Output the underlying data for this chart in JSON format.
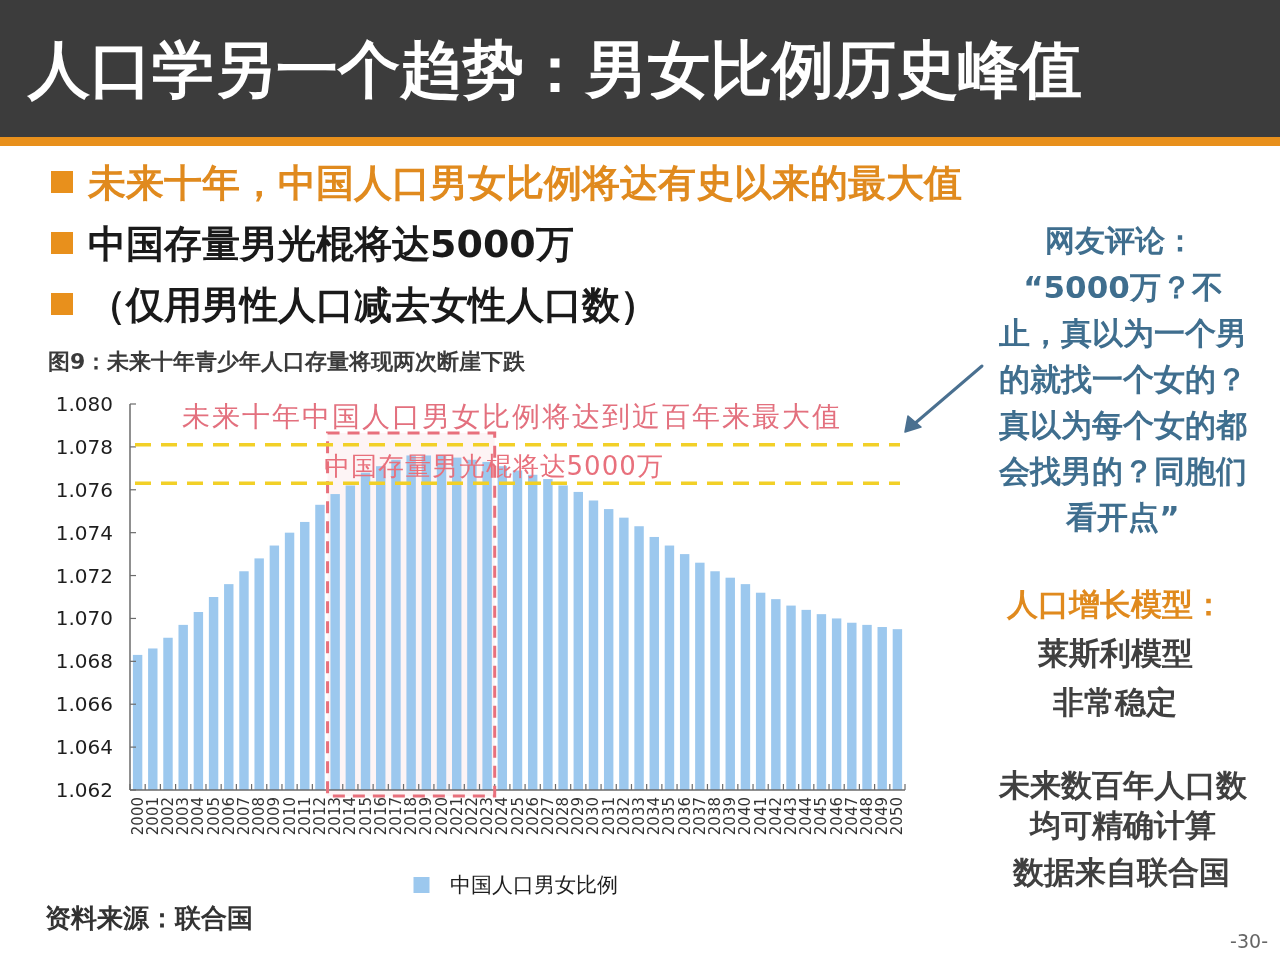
{
  "chart_data": {
    "type": "bar",
    "title": "人口学另一个趋势：男女比例历史峰值",
    "subtitle": "图9：未来十年青少年人口存量将现两次断崖下跌",
    "categories": [
      "2000",
      "2001",
      "2002",
      "2003",
      "2004",
      "2005",
      "2006",
      "2007",
      "2008",
      "2009",
      "2010",
      "2011",
      "2012",
      "2013",
      "2014",
      "2015",
      "2016",
      "2017",
      "2018",
      "2019",
      "2020",
      "2021",
      "2022",
      "2023",
      "2024",
      "2025",
      "2026",
      "2027",
      "2028",
      "2029",
      "2030",
      "2031",
      "2032",
      "2033",
      "2034",
      "2035",
      "2036",
      "2037",
      "2038",
      "2039",
      "2040",
      "2041",
      "2042",
      "2043",
      "2044",
      "2045",
      "2046",
      "2047",
      "2048",
      "2049",
      "2050"
    ],
    "series": [
      {
        "name": "中国人口男女比例",
        "color": "#9cc8ee",
        "values": [
          1.0683,
          1.0686,
          1.0691,
          1.0697,
          1.0703,
          1.071,
          1.0716,
          1.0722,
          1.0728,
          1.0734,
          1.074,
          1.0745,
          1.0753,
          1.0758,
          1.0762,
          1.0768,
          1.0771,
          1.0774,
          1.0776,
          1.0776,
          1.0776,
          1.0775,
          1.0774,
          1.0773,
          1.0771,
          1.0769,
          1.0767,
          1.0765,
          1.0762,
          1.0759,
          1.0755,
          1.0751,
          1.0747,
          1.0743,
          1.0738,
          1.0734,
          1.073,
          1.0726,
          1.0722,
          1.0719,
          1.0716,
          1.0712,
          1.0709,
          1.0706,
          1.0704,
          1.0702,
          1.07,
          1.0698,
          1.0697,
          1.0696,
          1.0695
        ]
      }
    ],
    "ylim": [
      1.062,
      1.08
    ],
    "yticks": [
      1.062,
      1.064,
      1.066,
      1.068,
      {
        "value": 1.07,
        "label": "1.070"
      },
      1.072,
      1.074,
      1.076,
      1.078,
      {
        "value": 1.08,
        "label": "1.080"
      }
    ],
    "ref_lines": [
      {
        "axis": "y",
        "value": 1.0781,
        "label": "未来十年中国人口男女比例将达到近百年来最大值",
        "color": "#f2d027",
        "line_style": "dashed"
      },
      {
        "axis": "y",
        "value": 1.0763,
        "color": "#f2d027",
        "line_style": "dashed"
      }
    ],
    "bands": [
      {
        "axis": "x",
        "from": "2013",
        "to": "2023",
        "label": "中国存量男光棍将达5000万",
        "color": "#e8707c"
      }
    ],
    "legend": "bottom",
    "annotations": [
      "未来十年，中国人口男女比例将达有史以来的最大值",
      "中国存量男光棍将达5000万",
      "（仅用男性人口减去女性人口数）",
      "网友评论：",
      "“5000万？不止，真以为一个男的就找一个女的？真以为每个女的都会找男的？同胞们看开点”",
      "人口增长模型：",
      "莱斯利模型",
      "非常稳定",
      "未来数百年人口数均可精确计算",
      "数据来自联合国",
      "资料来源：联合国",
      "-30-"
    ]
  }
}
